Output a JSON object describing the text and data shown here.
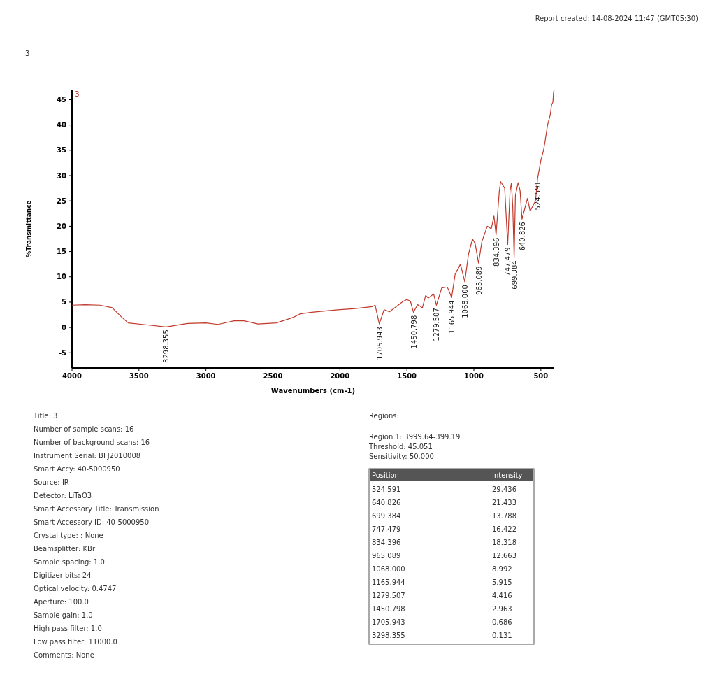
{
  "chart_data": {
    "type": "line",
    "title": "3",
    "subtitle": "Report created: 14-08-2024 11:47 (GMT05:30)",
    "xlabel": "Wavenumbers (cm-1)",
    "ylabel": "%Transmittance",
    "xlim": [
      4000,
      400
    ],
    "ylim": [
      -8,
      47
    ],
    "xticks": [
      4000,
      3500,
      3000,
      2500,
      2000,
      1500,
      1000,
      500
    ],
    "yticks": [
      -5,
      0,
      5,
      10,
      15,
      20,
      25,
      30,
      35,
      40,
      45
    ],
    "grid": false,
    "marker": "none",
    "line_style": "solid",
    "series": [
      {
        "name": "3",
        "color": "#c0392b",
        "x": [
          3999,
          3900,
          3790,
          3700,
          3632,
          3580,
          3437,
          3298.355,
          3137,
          3000,
          2910,
          2790,
          2716,
          2611,
          2474,
          2347,
          2295,
          2210,
          2016,
          1900,
          1760,
          1737,
          1705.943,
          1670,
          1630,
          1526,
          1500,
          1474,
          1450.798,
          1420,
          1384,
          1360,
          1340,
          1300,
          1279.507,
          1240,
          1200,
          1190,
          1165.944,
          1140,
          1100,
          1068,
          1040,
          1010,
          990,
          965.089,
          940,
          900,
          870,
          850,
          834.396,
          810,
          800,
          770,
          747.479,
          730,
          720,
          710,
          699.384,
          690,
          670,
          655,
          640.826,
          620,
          600,
          580,
          560,
          540,
          524.591,
          510,
          500,
          480,
          470,
          450,
          430,
          420,
          410,
          405,
          400
        ],
        "values": [
          4.4,
          4.5,
          4.4,
          3.9,
          2.1,
          0.9,
          0.5,
          0.1,
          0.8,
          0.9,
          0.6,
          1.3,
          1.3,
          0.7,
          0.9,
          2.0,
          2.7,
          3.0,
          3.5,
          3.7,
          4.1,
          4.4,
          0.7,
          3.5,
          3.1,
          5.2,
          5.5,
          5.2,
          3.0,
          4.5,
          3.9,
          6.3,
          5.8,
          6.6,
          4.4,
          7.8,
          8.0,
          7.5,
          5.9,
          10.5,
          12.5,
          9.0,
          14.5,
          17.5,
          16.5,
          12.7,
          17.0,
          20.0,
          19.5,
          22.0,
          18.3,
          27.0,
          28.8,
          27.5,
          16.4,
          27.0,
          28.5,
          24.0,
          13.8,
          26.0,
          28.6,
          27.0,
          21.4,
          23.5,
          25.5,
          23.0,
          24.0,
          25.0,
          29.4,
          31.5,
          33.0,
          35.0,
          36.5,
          40.0,
          42.0,
          44.0,
          44.5,
          46.5,
          47.0
        ]
      }
    ],
    "annotations": [
      "Title: 3",
      "Number of sample scans: 16",
      "Number of background scans: 16",
      "Instrument Serial: BFJ2010008",
      "Smart Accy: 40-5000950",
      "Source: IR",
      "Detector: LiTaO3",
      "Smart Accessory Title: Transmission",
      "Smart Accessory ID: 40-5000950",
      "Crystal type: : None",
      "Beamsplitter: KBr",
      "Sample spacing: 1.0",
      "Digitizer bits: 24",
      "Optical velocity: 0.4747",
      "Aperture: 100.0",
      "Sample gain: 1.0",
      "High pass filter: 1.0",
      "Low pass filter: 11000.0",
      "Comments: None",
      "Regions:",
      "Region 1: 3999.64-399.19",
      "Threshold: 45.051",
      "Sensitivity: 50.000",
      "Position",
      "Intensity",
      "29.436",
      "21.433",
      "13.788",
      "16.422",
      "18.318",
      "12.663",
      "8.992",
      "5.915",
      "4.416",
      "2.963",
      "0.686",
      "0.131",
      {
        "text": "524.591",
        "x": 524.591,
        "y": 29.436
      },
      {
        "text": "640.826",
        "x": 640.826,
        "y": 21.433
      },
      {
        "text": "699.384",
        "x": 699.384,
        "y": 13.788
      },
      {
        "text": "747.479",
        "x": 747.479,
        "y": 16.422
      },
      {
        "text": "834.396",
        "x": 834.396,
        "y": 18.318
      },
      {
        "text": "965.089",
        "x": 965.089,
        "y": 12.663
      },
      {
        "text": "1068.000",
        "x": 1068,
        "y": 8.992
      },
      {
        "text": "1165.944",
        "x": 1165.944,
        "y": 5.915
      },
      {
        "text": "1279.507",
        "x": 1279.507,
        "y": 4.416
      },
      {
        "text": "1450.798",
        "x": 1450.798,
        "y": 2.963
      },
      {
        "text": "1705.943",
        "x": 1705.943,
        "y": 0.686
      },
      {
        "text": "3298.355",
        "x": 3298.355,
        "y": 0.131
      }
    ]
  }
}
